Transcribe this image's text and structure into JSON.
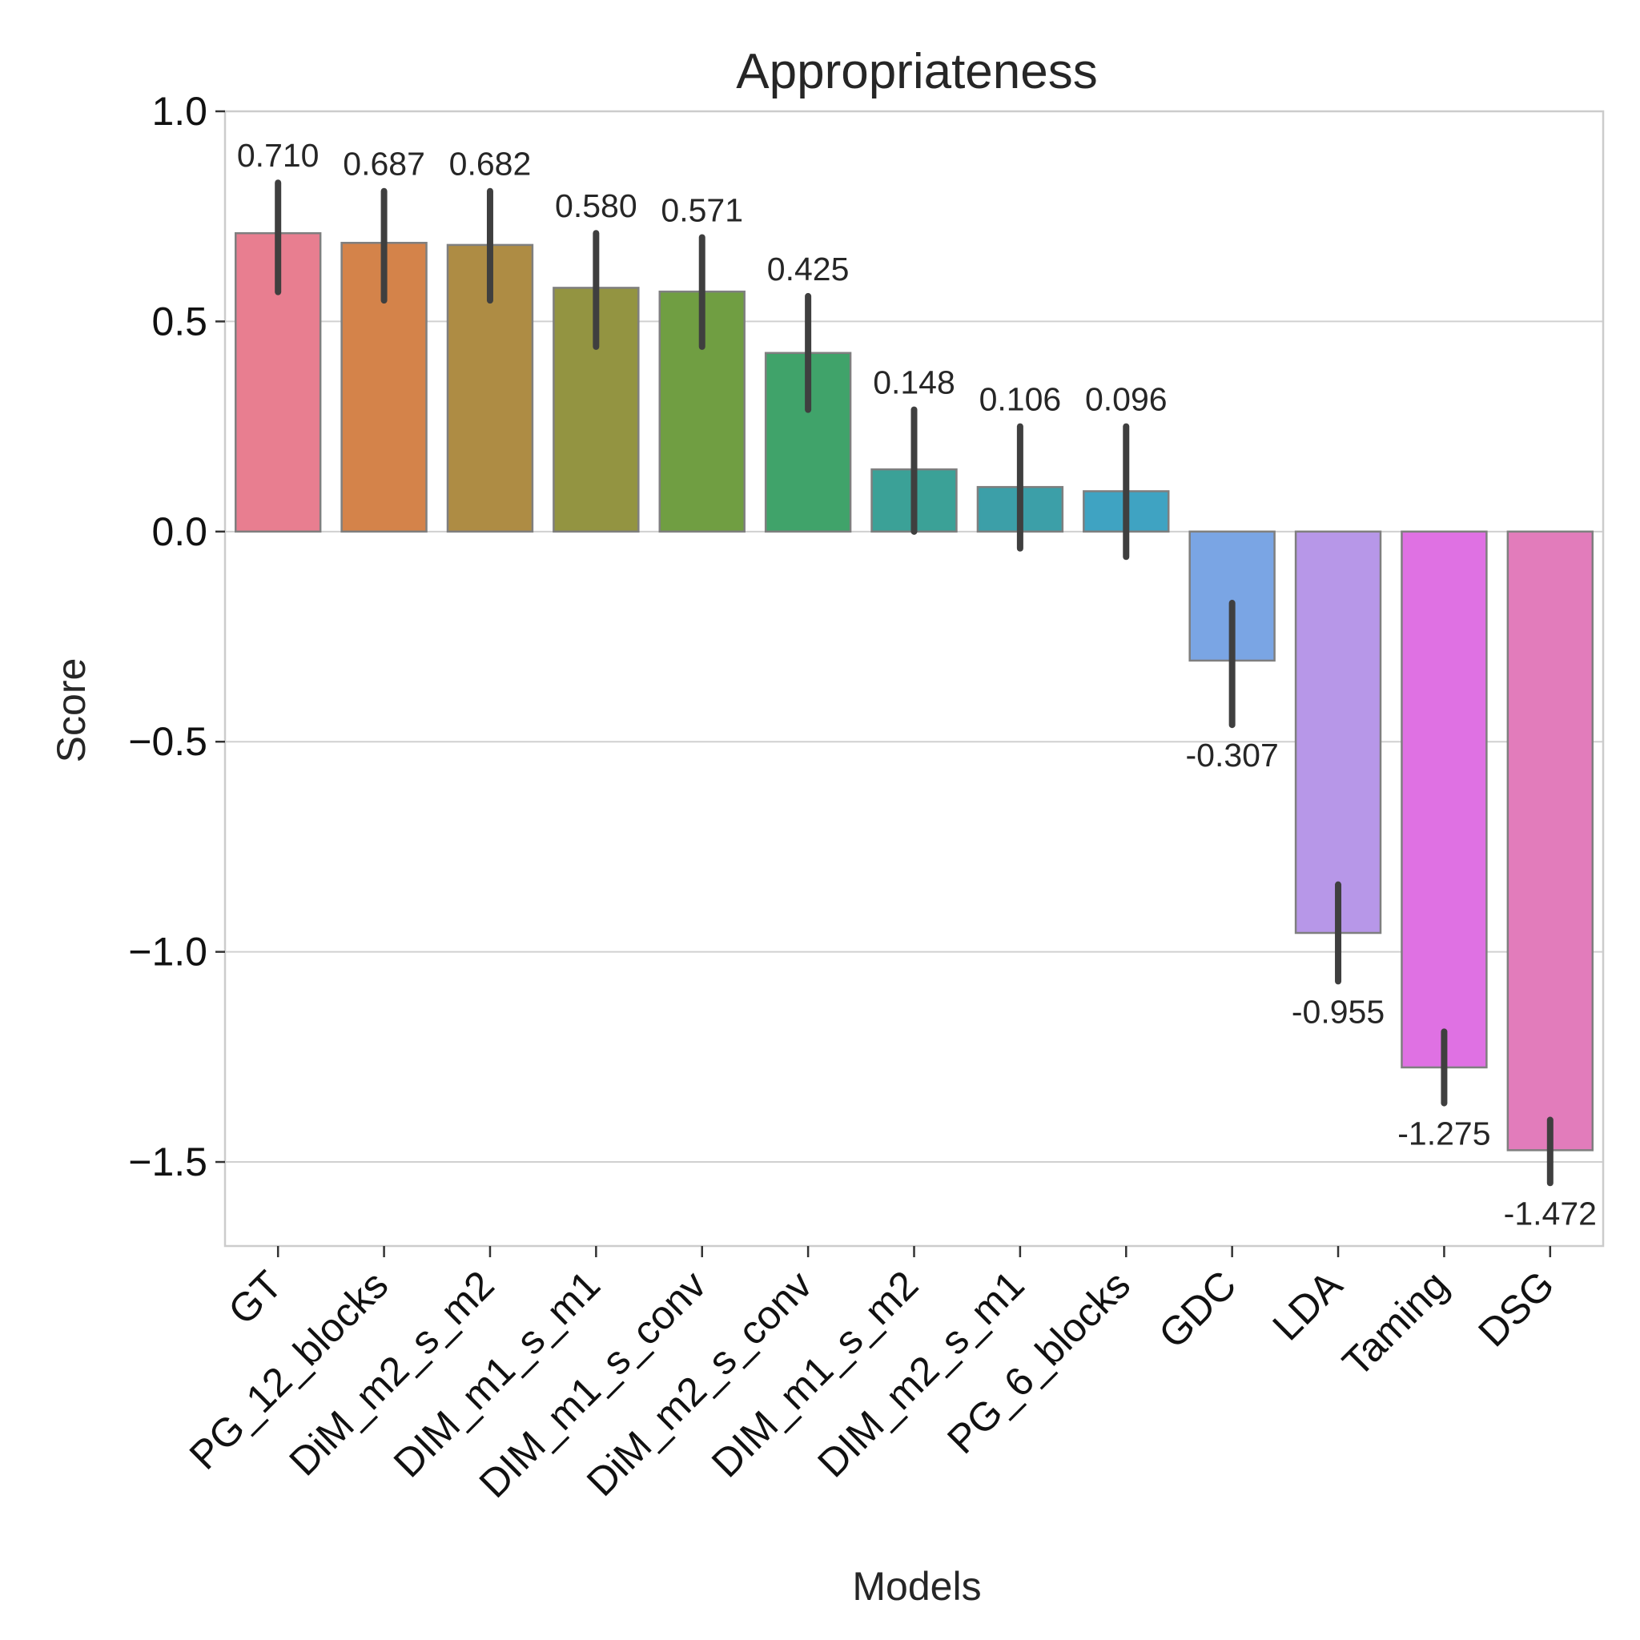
{
  "chart_data": {
    "type": "bar",
    "title": "Appropriateness",
    "xlabel": "Models",
    "ylabel": "Score",
    "ylim": [
      -1.7,
      1.0
    ],
    "yticks": [
      1.0,
      0.5,
      0.0,
      -0.5,
      -1.0,
      -1.5
    ],
    "ytick_labels": [
      "1.0",
      "0.5",
      "0.0",
      "−0.5",
      "−1.0",
      "−1.5"
    ],
    "grid": true,
    "categories": [
      "GT",
      "PG_12_blocks",
      "DiM_m2_s_m2",
      "DIM_m1_s_m1",
      "DIM_m1_s_conv",
      "DiM_m2_s_conv",
      "DIM_m1_s_m2",
      "DIM_m2_s_m1",
      "PG_6_blocks",
      "GDC",
      "LDA",
      "Taming",
      "DSG"
    ],
    "values": [
      0.71,
      0.687,
      0.682,
      0.58,
      0.571,
      0.425,
      0.148,
      0.106,
      0.096,
      -0.307,
      -0.955,
      -1.275,
      -1.472
    ],
    "value_labels": [
      "0.710",
      "0.687",
      "0.682",
      "0.580",
      "0.571",
      "0.425",
      "0.148",
      "0.106",
      "0.096",
      "-0.307",
      "-0.955",
      "-1.275",
      "-1.472"
    ],
    "error_low": [
      0.57,
      0.55,
      0.55,
      0.44,
      0.44,
      0.29,
      0.0,
      -0.04,
      -0.06,
      -0.46,
      -1.07,
      -1.36,
      -1.55
    ],
    "error_high": [
      0.83,
      0.81,
      0.81,
      0.71,
      0.7,
      0.56,
      0.29,
      0.25,
      0.25,
      -0.17,
      -0.84,
      -1.19,
      -1.4
    ],
    "colors": [
      "#e87e90",
      "#d4834a",
      "#ae8c44",
      "#939441",
      "#709e42",
      "#40a36a",
      "#3ba197",
      "#3c9fa8",
      "#3fa3c2",
      "#7aa5e4",
      "#b797e8",
      "#df71e3",
      "#e27cbb"
    ]
  }
}
